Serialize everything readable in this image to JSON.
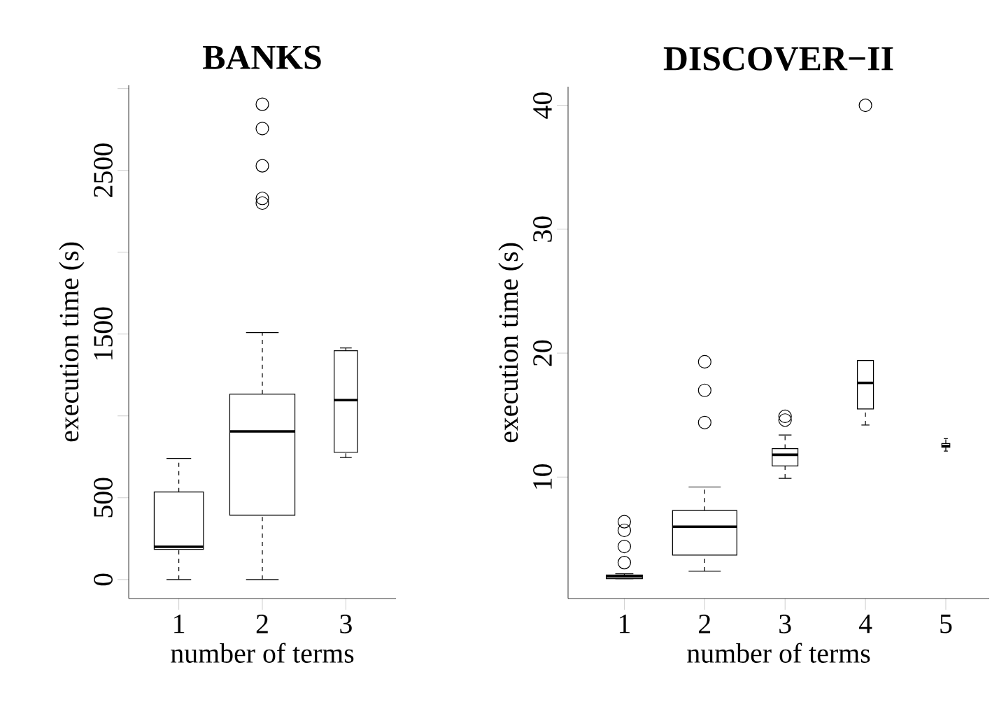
{
  "chart_data": [
    {
      "type": "box",
      "title": "BANKS",
      "xlabel": "number of terms",
      "ylabel": "execution time (s)",
      "categories": [
        "1",
        "2",
        "3"
      ],
      "marker": "circle",
      "ylim": [
        -116,
        3020
      ],
      "yticks": [
        0,
        500,
        {
          "value": 1000,
          "label": null
        },
        1500,
        {
          "value": 2000,
          "label": null
        },
        2500,
        {
          "value": 3000,
          "label": null
        }
      ],
      "boxes": [
        {
          "low": 0,
          "q1": 185,
          "median": 200,
          "q3": 535,
          "high": 740
        },
        {
          "low": 0,
          "q1": 393,
          "median": 905,
          "q3": 1133,
          "high": 1509,
          "outliers": [
            2904,
            2756,
            2528,
            2329,
            2300
          ]
        },
        {
          "low": 746,
          "q1": 777,
          "median": 1096,
          "q3": 1398,
          "high": 1415
        }
      ]
    },
    {
      "type": "box",
      "title": "DISCOVER−II",
      "xlabel": "number of terms",
      "ylabel": "execution time (s)",
      "categories": [
        "1",
        "2",
        "3",
        "4",
        "5"
      ],
      "marker": "circle",
      "ylim": [
        0.2,
        41.5
      ],
      "yticks": [
        10,
        20,
        30,
        40
      ],
      "boxes": [
        {
          "low": 1.8,
          "q1": 1.8,
          "median": 2.0,
          "q3": 2.1,
          "high": 2.2,
          "outliers": [
            3.1,
            4.4,
            5.7,
            6.4
          ]
        },
        {
          "low": 2.4,
          "q1": 3.7,
          "median": 6.0,
          "q3": 7.3,
          "high": 9.2,
          "outliers": [
            14.4,
            17.0,
            19.3
          ]
        },
        {
          "low": 9.9,
          "q1": 10.9,
          "median": 11.8,
          "q3": 12.3,
          "high": 13.4,
          "outliers": [
            14.6,
            14.9
          ]
        },
        {
          "low": 14.2,
          "q1": 15.5,
          "median": 17.6,
          "q3": 19.4,
          "high": 19.4,
          "outliers": [
            40
          ]
        },
        {
          "low": 12.1,
          "q1": 12.4,
          "median": 12.5,
          "q3": 12.7,
          "high": 13.1
        }
      ]
    }
  ]
}
